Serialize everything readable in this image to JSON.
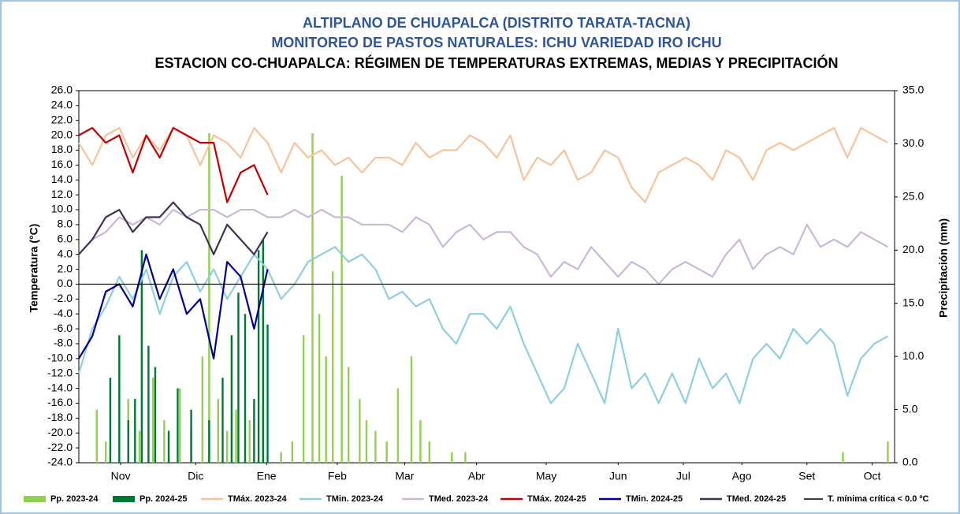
{
  "chart_data": {
    "type": "bar-line",
    "title": "ALTIPLANO DE CHUAPALCA (DISTRITO TARATA-TACNA)",
    "subtitle": "MONITOREO DE PASTOS NATURALES: ICHU VARIEDAD IRO ICHU",
    "heading": "ESTACION CO-CHUAPALCA: RÉGIMEN DE TEMPERATURAS EXTREMAS, MEDIAS Y PRECIPITACIÓN",
    "ylabel": "Temperatura (°C)",
    "y2label": "Precipitación (mm)",
    "xlim": [
      0,
      363
    ],
    "xticks": [
      {
        "value": 18.6,
        "label": "Nov"
      },
      {
        "value": 52,
        "label": "Dic"
      },
      {
        "value": 83.5,
        "label": "Ene"
      },
      {
        "value": 115,
        "label": "Feb"
      },
      {
        "value": 145,
        "label": "Mar"
      },
      {
        "value": 177,
        "label": "Abr"
      },
      {
        "value": 208,
        "label": "May"
      },
      {
        "value": 240,
        "label": "Jun"
      },
      {
        "value": 269,
        "label": "Jul"
      },
      {
        "value": 295,
        "label": "Ago"
      },
      {
        "value": 324,
        "label": "Set"
      },
      {
        "value": 353,
        "label": "Oct"
      }
    ],
    "ylim": [
      -24,
      26
    ],
    "yticks": [
      {
        "value": -24,
        "label": "-24.0"
      },
      {
        "value": -22,
        "label": "-22.0"
      },
      {
        "value": -20,
        "label": "-20.0"
      },
      {
        "value": -18,
        "label": "-18.0"
      },
      {
        "value": -16,
        "label": "-16.0"
      },
      {
        "value": -14,
        "label": "-14.0"
      },
      {
        "value": -12,
        "label": "-12.0"
      },
      {
        "value": -10,
        "label": "-10.0"
      },
      {
        "value": -8,
        "label": "-8.0"
      },
      {
        "value": -6,
        "label": "-6.0"
      },
      {
        "value": -4,
        "label": "-4.0"
      },
      {
        "value": -2,
        "label": "-2.0"
      },
      {
        "value": 0,
        "label": "0.0"
      },
      {
        "value": 2,
        "label": "2.0"
      },
      {
        "value": 4,
        "label": "4.0"
      },
      {
        "value": 6,
        "label": "6.0"
      },
      {
        "value": 8,
        "label": "8.0"
      },
      {
        "value": 10,
        "label": "10.0"
      },
      {
        "value": 12,
        "label": "12.0"
      },
      {
        "value": 14,
        "label": "14.0"
      },
      {
        "value": 16,
        "label": "16.0"
      },
      {
        "value": 18,
        "label": "18.0"
      },
      {
        "value": 20,
        "label": "20.0"
      },
      {
        "value": 22,
        "label": "22.0"
      },
      {
        "value": 24,
        "label": "24.0"
      },
      {
        "value": 26,
        "label": "26.0"
      }
    ],
    "y2lim": [
      0,
      35
    ],
    "y2ticks": [
      {
        "value": 0,
        "label": "0.0"
      },
      {
        "value": 5,
        "label": "5.0"
      },
      {
        "value": 10,
        "label": "10.0"
      },
      {
        "value": 15,
        "label": "15.0"
      },
      {
        "value": 20,
        "label": "20.0"
      },
      {
        "value": 25,
        "label": "25.0"
      },
      {
        "value": 30,
        "label": "30.0"
      },
      {
        "value": 35,
        "label": "35.0"
      }
    ],
    "x": [
      0,
      6,
      12,
      18,
      24,
      30,
      36,
      42,
      48,
      54,
      60,
      66,
      72,
      78,
      84,
      90,
      96,
      102,
      108,
      114,
      120,
      126,
      132,
      138,
      144,
      150,
      156,
      162,
      168,
      174,
      180,
      186,
      192,
      198,
      204,
      210,
      216,
      222,
      228,
      234,
      240,
      246,
      252,
      258,
      264,
      270,
      276,
      282,
      288,
      294,
      300,
      306,
      312,
      318,
      324,
      330,
      336,
      342,
      348,
      354,
      360
    ],
    "series": [
      {
        "name": "Pp. 2023-24",
        "type": "bar",
        "axis": "y2",
        "color": "#92d050",
        "x": [
          8,
          12,
          22,
          27,
          33,
          38,
          45,
          50,
          55,
          58,
          62,
          66,
          70,
          76,
          82,
          90,
          95,
          100,
          104,
          107,
          110,
          113,
          117,
          120,
          125,
          128,
          132,
          137,
          142,
          148,
          152,
          156,
          166,
          172,
          340,
          360
        ],
        "values": [
          5,
          2,
          6,
          3,
          8,
          4,
          7,
          3,
          10,
          31,
          6,
          3,
          5,
          4,
          8,
          1,
          2,
          12,
          31,
          14,
          10,
          18,
          27,
          9,
          6,
          4,
          3,
          2,
          7,
          10,
          4,
          2,
          1,
          1,
          1,
          2
        ]
      },
      {
        "name": "Pp. 2024-25",
        "type": "bar",
        "axis": "y2",
        "color": "#007a33",
        "x": [
          14,
          18,
          22,
          25,
          28,
          31,
          34,
          40,
          44,
          50,
          58,
          64,
          68,
          71,
          74,
          78,
          80,
          82,
          84
        ],
        "values": [
          8,
          12,
          4,
          6,
          20,
          11,
          9,
          3,
          7,
          5,
          4,
          8,
          12,
          16,
          14,
          6,
          20,
          21,
          13
        ]
      },
      {
        "name": "TMáx. 2023-24",
        "type": "line",
        "color": "#f8c29a",
        "values": [
          19,
          16,
          20,
          21,
          17,
          20,
          18,
          21,
          20,
          16,
          20,
          19,
          17,
          21,
          19,
          15,
          19,
          17,
          18,
          16,
          17,
          15,
          17,
          17,
          16,
          19,
          17,
          18,
          18,
          20,
          19,
          17,
          20,
          14,
          17,
          16,
          18,
          14,
          15,
          18,
          17,
          13,
          11,
          15,
          16,
          17,
          16,
          14,
          18,
          17,
          14,
          18,
          19,
          18,
          19,
          20,
          21,
          17,
          21,
          20,
          19
        ]
      },
      {
        "name": "TMin. 2023-24",
        "type": "line",
        "color": "#8ecfdf",
        "values": [
          -12,
          -6,
          -3,
          1,
          -2,
          2,
          -4,
          1,
          3,
          -1,
          2,
          -2,
          1,
          4,
          2,
          -2,
          0,
          3,
          4,
          5,
          3,
          4,
          2,
          -2,
          -1,
          -3,
          -2,
          -6,
          -8,
          -4,
          -4,
          -6,
          -3,
          -8,
          -12,
          -16,
          -14,
          -8,
          -12,
          -16,
          -6,
          -14,
          -12,
          -16,
          -12,
          -16,
          -10,
          -14,
          -12,
          -16,
          -10,
          -8,
          -10,
          -6,
          -8,
          -6,
          -8,
          -15,
          -10,
          -8,
          -7
        ]
      },
      {
        "name": "TMed. 2023-24",
        "type": "line",
        "color": "#c9b8d9",
        "values": [
          4,
          6,
          7,
          9,
          8,
          9,
          8,
          10,
          9,
          10,
          10,
          9,
          10,
          10,
          9,
          9,
          10,
          9,
          10,
          9,
          9,
          8,
          8,
          8,
          7,
          9,
          8,
          5,
          7,
          8,
          6,
          7,
          7,
          5,
          4,
          1,
          3,
          2,
          5,
          3,
          1,
          3,
          2,
          0,
          2,
          3,
          2,
          1,
          4,
          6,
          2,
          4,
          5,
          4,
          8,
          5,
          6,
          5,
          7,
          6,
          5
        ]
      },
      {
        "name": "TMáx. 2024-25",
        "type": "line",
        "color": "#c00000",
        "values": [
          20,
          21,
          19,
          20,
          15,
          20,
          17,
          21,
          20,
          19,
          19,
          11,
          15,
          16,
          12,
          null,
          null,
          null,
          null,
          null,
          null,
          null,
          null,
          null,
          null,
          null,
          null,
          null,
          null,
          null,
          null,
          null,
          null,
          null,
          null,
          null,
          null,
          null,
          null,
          null,
          null,
          null,
          null,
          null,
          null,
          null,
          null,
          null,
          null,
          null,
          null,
          null,
          null,
          null,
          null,
          null,
          null,
          null,
          null,
          null,
          null
        ]
      },
      {
        "name": "TMin. 2024-25",
        "type": "line",
        "color": "#00008b",
        "values": [
          -10,
          -7,
          -1,
          0,
          -3,
          4,
          -2,
          2,
          -4,
          -2,
          -10,
          3,
          1,
          -6,
          2,
          null,
          null,
          null,
          null,
          null,
          null,
          null,
          null,
          null,
          null,
          null,
          null,
          null,
          null,
          null,
          null,
          null,
          null,
          null,
          null,
          null,
          null,
          null,
          null,
          null,
          null,
          null,
          null,
          null,
          null,
          null,
          null,
          null,
          null,
          null,
          null,
          null,
          null,
          null,
          null,
          null,
          null,
          null,
          null,
          null,
          null
        ]
      },
      {
        "name": "TMed. 2024-25",
        "type": "line",
        "color": "#3f3151",
        "values": [
          4,
          6,
          9,
          10,
          7,
          9,
          9,
          11,
          9,
          8,
          4,
          8,
          6,
          4,
          7,
          null,
          null,
          null,
          null,
          null,
          null,
          null,
          null,
          null,
          null,
          null,
          null,
          null,
          null,
          null,
          null,
          null,
          null,
          null,
          null,
          null,
          null,
          null,
          null,
          null,
          null,
          null,
          null,
          null,
          null,
          null,
          null,
          null,
          null,
          null,
          null,
          null,
          null,
          null,
          null,
          null,
          null,
          null,
          null,
          null,
          null
        ]
      }
    ],
    "threshold": {
      "name": "T. mínima crítica < 0.0 ºC",
      "value": 0,
      "color": "#000000"
    }
  }
}
